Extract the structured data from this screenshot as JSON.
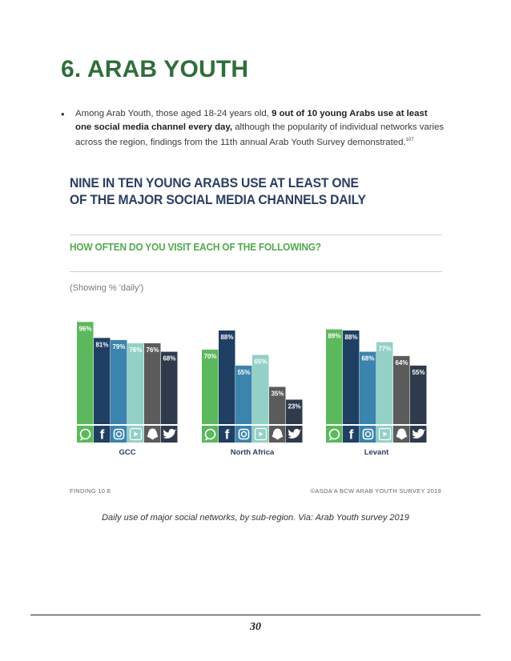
{
  "heading": "6. ARAB YOUTH",
  "bullet": {
    "part1": "Among Arab Youth, those aged 18-24 years old, ",
    "bold": "9 out of 10 young Arabs use at least one social media channel every day,",
    "part2": " although the popularity of individual networks varies across the region, findings from the 11th annual Arab Youth Survey demonstrated.",
    "footnote": "107"
  },
  "figure": {
    "title_line1": "NINE IN TEN YOUNG ARABS USE AT LEAST ONE",
    "title_line2": "OF THE MAJOR SOCIAL MEDIA CHANNELS DAILY",
    "question": "HOW OFTEN DO YOU VISIT EACH OF THE FOLLOWING?",
    "note": "(Showing % 'daily')",
    "finding": "FINDING 10.E",
    "source": "©ASDA'A BCW ARAB YOUTH SURVEY 2019"
  },
  "chart_data": {
    "type": "bar",
    "categories": [
      "GCC",
      "North Africa",
      "Levant"
    ],
    "series": [
      {
        "name": "WhatsApp",
        "icon": "whatsapp-icon",
        "color": "#5cb85c",
        "values": [
          96,
          70,
          89
        ]
      },
      {
        "name": "Facebook",
        "icon": "facebook-icon",
        "color": "#1f3f63",
        "values": [
          81,
          88,
          88
        ]
      },
      {
        "name": "Instagram",
        "icon": "instagram-icon",
        "color": "#3b84ad",
        "values": [
          79,
          55,
          68
        ]
      },
      {
        "name": "YouTube",
        "icon": "youtube-icon",
        "color": "#93d0c6",
        "values": [
          76,
          65,
          77
        ]
      },
      {
        "name": "Snapchat",
        "icon": "snapchat-icon",
        "color": "#5b5b5b",
        "values": [
          76,
          35,
          64
        ]
      },
      {
        "name": "Twitter",
        "icon": "twitter-icon",
        "color": "#2f3b4c",
        "values": [
          68,
          23,
          55
        ]
      }
    ],
    "ylim": [
      0,
      100
    ],
    "value_suffix": "%"
  },
  "caption": "Daily use of major social networks, by sub-region. Via: Arab Youth survey 2019",
  "page_number": "30"
}
